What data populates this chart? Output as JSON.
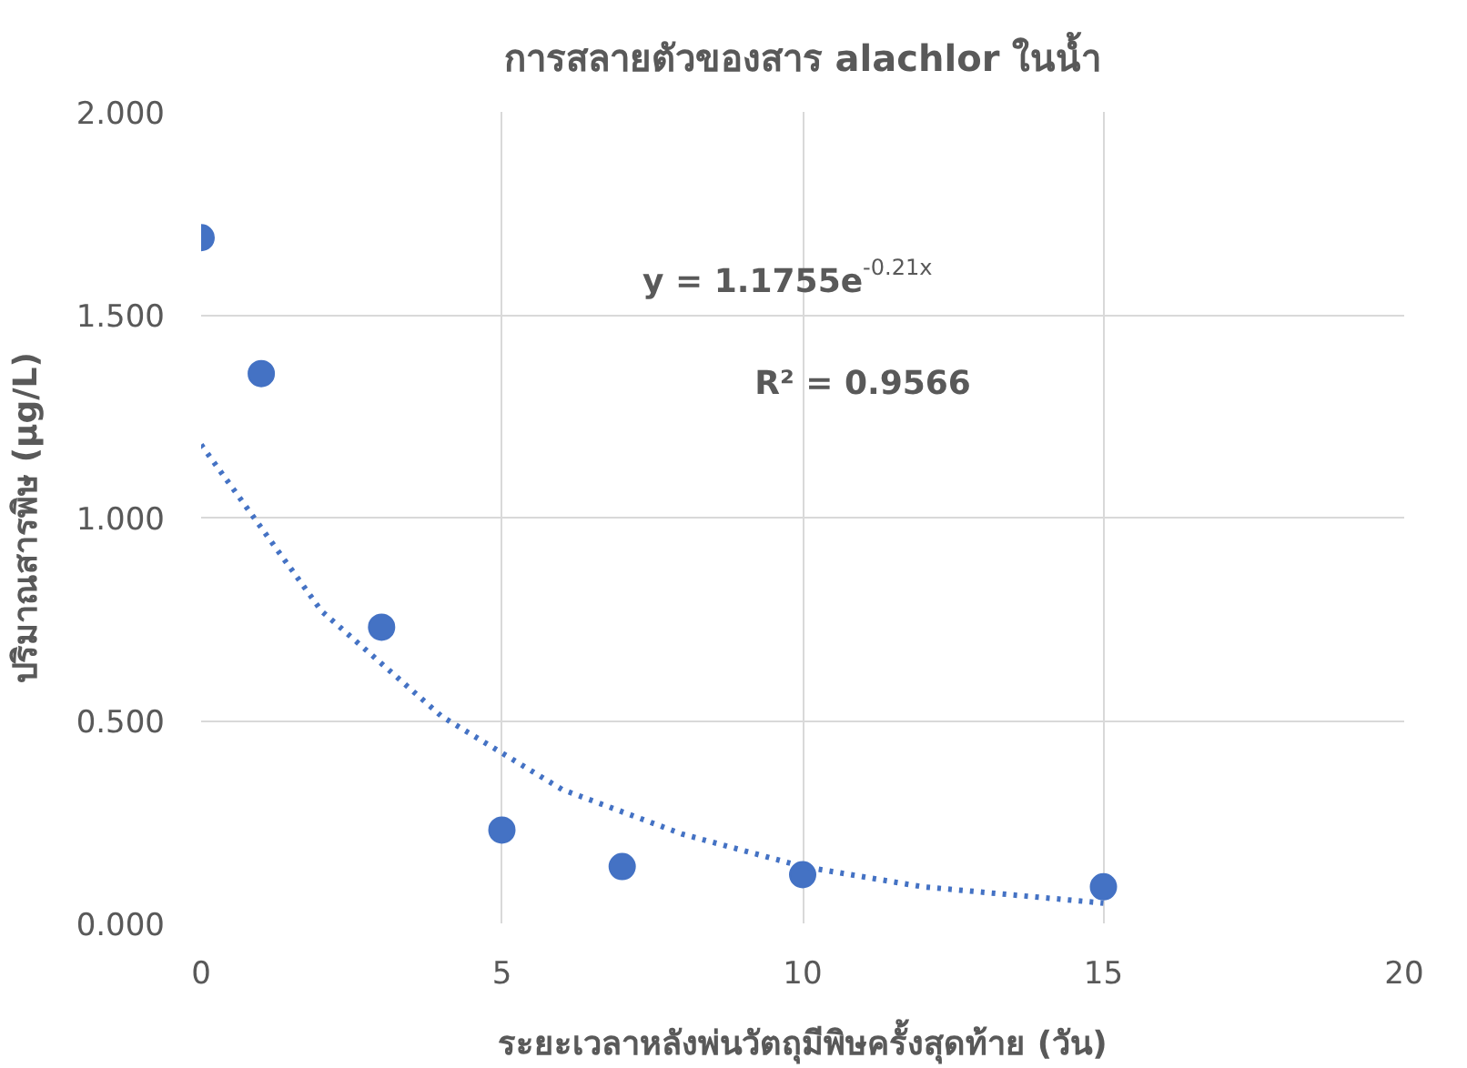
{
  "chart_data": {
    "type": "scatter",
    "title": "การสลายตัวของสาร alachlor ในน้ำ",
    "xlabel": "ระยะเวลาหลังพ่นวัตถุมีพิษครั้งสุดท้าย (วัน)",
    "ylabel": "ปริมาณสารพิษ (µg/L)",
    "x": [
      0,
      1,
      3,
      5,
      7,
      10,
      15
    ],
    "series": [
      {
        "marker": "circle",
        "color": "#4472c4",
        "values": [
          1.69,
          1.355,
          0.73,
          0.23,
          0.14,
          0.12,
          0.09
        ]
      },
      {
        "type": "line",
        "line_style": "dotted",
        "color": "#4472c4",
        "x": [
          0,
          2,
          4,
          6,
          8,
          10,
          12,
          15
        ],
        "values": [
          1.18,
          0.77,
          0.51,
          0.33,
          0.22,
          0.14,
          0.09,
          0.05
        ]
      }
    ],
    "xlim": [
      0,
      20
    ],
    "xticks": [
      0,
      5,
      10,
      15,
      20
    ],
    "ylim": [
      0,
      2
    ],
    "yticks": [
      {
        "value": 0,
        "label": "0.000"
      },
      {
        "value": 0.5,
        "label": "0.500"
      },
      {
        "value": 1,
        "label": "1.000"
      },
      {
        "value": 1.5,
        "label": "1.500"
      },
      {
        "value": 2,
        "label": "2.000"
      }
    ],
    "grid": true,
    "annotations": [
      "y = 1.1755e$^{-0.21x}$",
      "R² = 0.9566"
    ]
  }
}
